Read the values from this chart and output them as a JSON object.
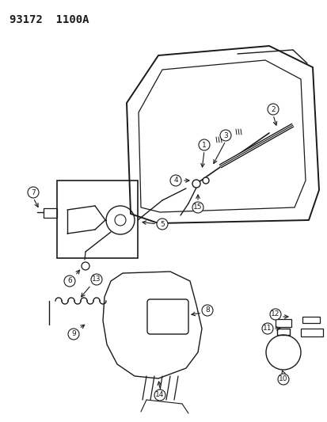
{
  "title": "93172  1100A",
  "bg_color": "#ffffff",
  "line_color": "#1a1a1a",
  "figsize": [
    4.14,
    5.33
  ],
  "dpi": 100
}
